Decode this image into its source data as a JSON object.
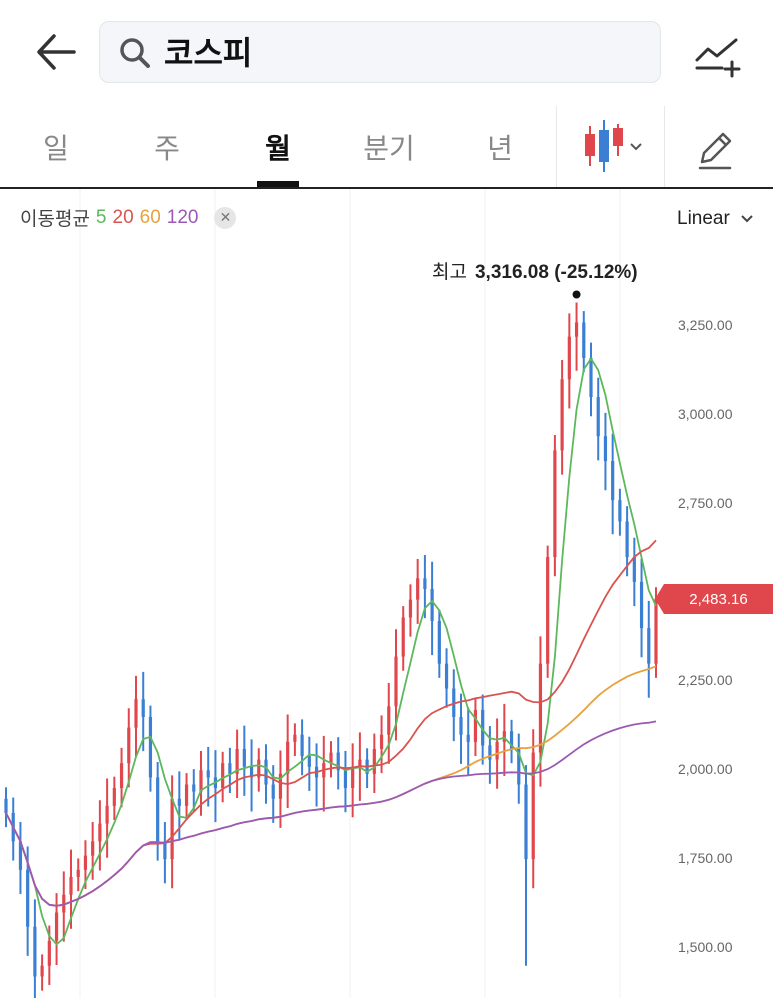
{
  "search": {
    "query": "코스피"
  },
  "tabs": [
    {
      "label": "일",
      "active": false
    },
    {
      "label": "주",
      "active": false
    },
    {
      "label": "월",
      "active": true
    },
    {
      "label": "분기",
      "active": false
    },
    {
      "label": "년",
      "active": false
    }
  ],
  "icons": {
    "back": "arrow-left-icon",
    "search": "search-icon",
    "compare": "add-compare-chart-icon",
    "chart_type": "candlestick-icon",
    "edit": "pencil-icon"
  },
  "colors": {
    "up": "#e0474c",
    "down": "#3a7fd4",
    "ma5": "#5cb85c",
    "ma20": "#d9534f",
    "ma60": "#e8a23c",
    "ma120": "#9b59b6"
  },
  "indicator": {
    "title": "이동평균",
    "periods": [
      {
        "label": "5",
        "color": "#5cb85c"
      },
      {
        "label": "20",
        "color": "#d9534f"
      },
      {
        "label": "60",
        "color": "#e8a23c"
      },
      {
        "label": "120",
        "color": "#9b59b6"
      }
    ]
  },
  "scale": "Linear",
  "current_price": "2,483.16",
  "high": {
    "label": "최고",
    "value": "3,316.08 (-25.12%)"
  },
  "chart_data": {
    "type": "candlestick",
    "interval": "monthly",
    "y_ticks": [
      "3,250.00",
      "3,000.00",
      "2,750.00",
      "2,500.00",
      "2,250.00",
      "2,000.00",
      "1,750.00",
      "1,500.00"
    ],
    "y_tick_values": [
      3250,
      3000,
      2750,
      2500,
      2250,
      2000,
      1750,
      1500
    ],
    "ylim": [
      1370,
      3400
    ],
    "closes": [
      1880,
      1800,
      1720,
      1560,
      1420,
      1450,
      1520,
      1600,
      1650,
      1700,
      1720,
      1760,
      1800,
      1850,
      1900,
      1950,
      2020,
      2120,
      2200,
      2150,
      1980,
      1800,
      1750,
      1920,
      1900,
      1960,
      1940,
      2000,
      1980,
      1950,
      2020,
      1990,
      2060,
      2010,
      1980,
      2030,
      1960,
      1920,
      1990,
      2080,
      2100,
      2040,
      2010,
      1980,
      2020,
      2050,
      2000,
      1950,
      2010,
      2030,
      1990,
      2060,
      2100,
      2180,
      2320,
      2430,
      2480,
      2540,
      2510,
      2420,
      2300,
      2230,
      2150,
      2100,
      2080,
      2170,
      2070,
      2030,
      2080,
      2110,
      2060,
      1960,
      1750,
      2050,
      2300,
      2600,
      2900,
      3100,
      3220,
      3260,
      3160,
      3050,
      2940,
      2870,
      2760,
      2700,
      2600,
      2530,
      2400,
      2300,
      2483
    ],
    "high": {
      "value": 3316.08,
      "index": 79
    },
    "last": 2483.16
  }
}
